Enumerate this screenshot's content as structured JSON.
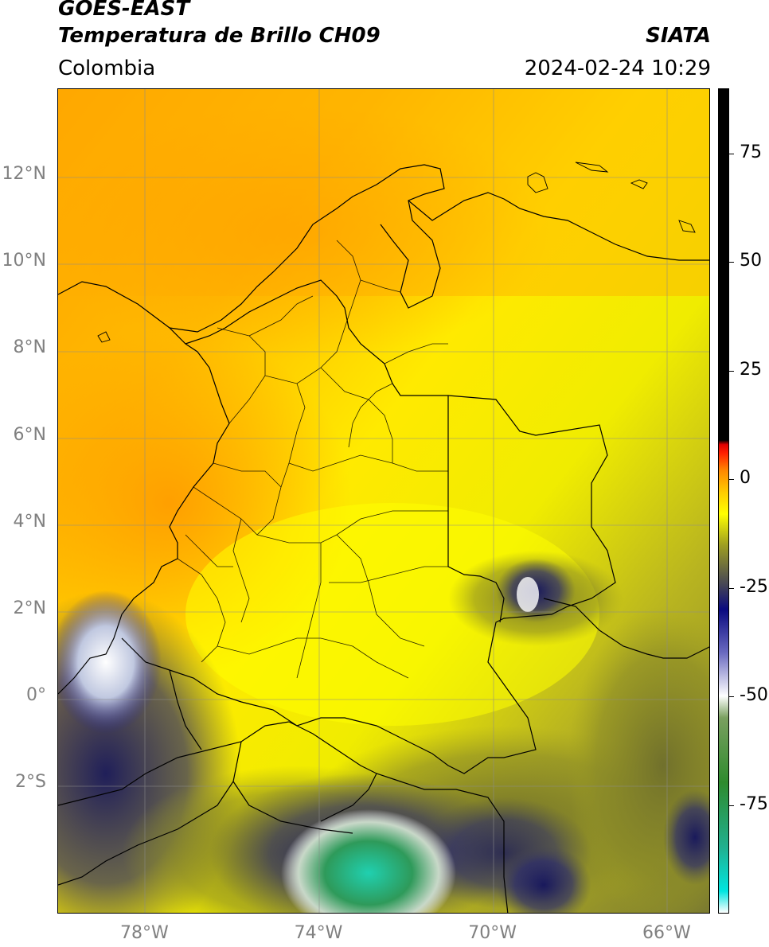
{
  "header": {
    "satellite": "GOES-EAST",
    "product": "Temperatura de Brillo CH09",
    "region": "Colombia",
    "organization": "SIATA",
    "datetime": "2024-02-24 10:29"
  },
  "map": {
    "lon_range": [
      -80,
      -65
    ],
    "lat_range": [
      -5,
      14
    ],
    "lat_ticks": [
      {
        "label": "12°N",
        "value": 12
      },
      {
        "label": "10°N",
        "value": 10
      },
      {
        "label": "8°N",
        "value": 8
      },
      {
        "label": "6°N",
        "value": 6
      },
      {
        "label": "4°N",
        "value": 4
      },
      {
        "label": "2°N",
        "value": 2
      },
      {
        "label": "0°",
        "value": 0
      },
      {
        "label": "2°S",
        "value": -2
      }
    ],
    "lon_ticks": [
      {
        "label": "78°W",
        "value": -78
      },
      {
        "label": "74°W",
        "value": -74
      },
      {
        "label": "70°W",
        "value": -70
      },
      {
        "label": "66°W",
        "value": -66
      }
    ],
    "gridlines": true
  },
  "colorbar": {
    "range": [
      -100,
      90
    ],
    "ticks": [
      {
        "label": "75",
        "value": 75
      },
      {
        "label": "50",
        "value": 50
      },
      {
        "label": "25",
        "value": 25
      },
      {
        "label": "0",
        "value": 0
      },
      {
        "label": "-25",
        "value": -25
      },
      {
        "label": "-50",
        "value": -50
      },
      {
        "label": "-75",
        "value": -75
      }
    ],
    "stops": [
      {
        "value": -100,
        "color": "#ffffff"
      },
      {
        "value": -95,
        "color": "#00e5e0"
      },
      {
        "value": -85,
        "color": "#20b090"
      },
      {
        "value": -70,
        "color": "#2e8b2e"
      },
      {
        "value": -55,
        "color": "#7aa060"
      },
      {
        "value": -50,
        "color": "#ffffff"
      },
      {
        "value": -40,
        "color": "#6a6ac0"
      },
      {
        "value": -30,
        "color": "#0a0a80"
      },
      {
        "value": -25,
        "color": "#3e3e5a"
      },
      {
        "value": -15,
        "color": "#a0a020"
      },
      {
        "value": -8,
        "color": "#ffff00"
      },
      {
        "value": -3,
        "color": "#ffcc00"
      },
      {
        "value": 2,
        "color": "#ff8800"
      },
      {
        "value": 6,
        "color": "#ff2000"
      },
      {
        "value": 8,
        "color": "#e00000"
      },
      {
        "value": 9,
        "color": "#000000"
      },
      {
        "value": 90,
        "color": "#000000"
      }
    ]
  },
  "colors": {
    "warm_orange": "#ffa500",
    "warm_yellow": "#ffee00",
    "cold_olive": "#6b6b2a",
    "cold_navy": "#0a0a80"
  }
}
